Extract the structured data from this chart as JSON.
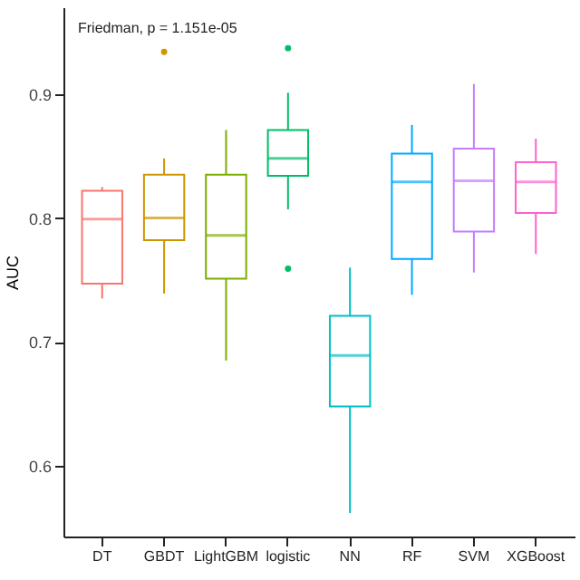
{
  "chart_data": {
    "type": "box",
    "ylabel": "AUC",
    "categories": [
      "DT",
      "GBDT",
      "LightGBM",
      "logistic",
      "NN",
      "RF",
      "SVM",
      "XGBoost"
    ],
    "colors": [
      "#f8766d",
      "#cd9600",
      "#7cae00",
      "#00be67",
      "#00bfc4",
      "#00a9ff",
      "#c77cff",
      "#ff61cc"
    ],
    "boxes": [
      {
        "low": 0.735,
        "q1": 0.747,
        "median": 0.799,
        "q3": 0.822,
        "high": 0.825
      },
      {
        "low": 0.739,
        "q1": 0.782,
        "median": 0.8,
        "q3": 0.835,
        "high": 0.848,
        "outliers": [
          0.934
        ]
      },
      {
        "low": 0.685,
        "q1": 0.751,
        "median": 0.786,
        "q3": 0.835,
        "high": 0.871
      },
      {
        "low": 0.807,
        "q1": 0.834,
        "median": 0.848,
        "q3": 0.871,
        "high": 0.901,
        "outliers": [
          0.937,
          0.759
        ]
      },
      {
        "low": 0.562,
        "q1": 0.648,
        "median": 0.689,
        "q3": 0.721,
        "high": 0.76
      },
      {
        "low": 0.738,
        "q1": 0.767,
        "median": 0.829,
        "q3": 0.852,
        "high": 0.875
      },
      {
        "low": 0.756,
        "q1": 0.789,
        "median": 0.83,
        "q3": 0.856,
        "high": 0.908
      },
      {
        "low": 0.771,
        "q1": 0.804,
        "median": 0.829,
        "q3": 0.845,
        "high": 0.864
      }
    ],
    "ylim": [
      0.543,
      0.97
    ],
    "yticks": [
      0.6,
      0.7,
      0.8,
      0.9
    ],
    "grid": false,
    "annotations": [
      "Friedman, p = 1.151e-05"
    ]
  }
}
